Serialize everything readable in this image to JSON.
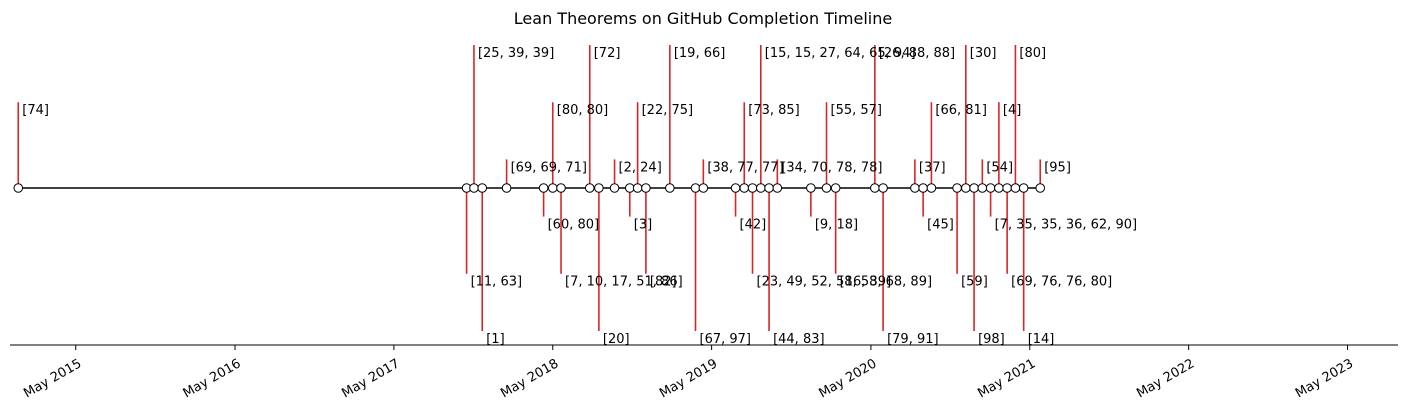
{
  "chart_data": {
    "type": "timeline",
    "title": "Lean Theorems on GitHub Completion Timeline",
    "x_axis": {
      "ticks": [
        {
          "date": "2015-05-01",
          "label": "May 2015"
        },
        {
          "date": "2016-05-01",
          "label": "May 2016"
        },
        {
          "date": "2017-05-01",
          "label": "May 2017"
        },
        {
          "date": "2018-05-01",
          "label": "May 2018"
        },
        {
          "date": "2019-05-01",
          "label": "May 2019"
        },
        {
          "date": "2020-05-01",
          "label": "May 2020"
        },
        {
          "date": "2021-05-01",
          "label": "May 2021"
        },
        {
          "date": "2022-05-01",
          "label": "May 2022"
        },
        {
          "date": "2023-05-01",
          "label": "May 2023"
        }
      ],
      "xlim": [
        "2014-12-01",
        "2023-08-25"
      ]
    },
    "grid": false,
    "stem_color": "#d62728",
    "baseline_color": "#000000",
    "events": [
      {
        "date": "2014-12-20",
        "level": 3,
        "label": "[74]"
      },
      {
        "date": "2017-10-15",
        "level": -3,
        "label": "[11, 63]"
      },
      {
        "date": "2017-11-01",
        "level": 5,
        "label": "[25, 39, 39]"
      },
      {
        "date": "2017-11-20",
        "level": -5,
        "label": "[1]"
      },
      {
        "date": "2018-01-15",
        "level": 1,
        "label": "[69, 69, 71]"
      },
      {
        "date": "2018-04-10",
        "level": -1,
        "label": "[60, 80]"
      },
      {
        "date": "2018-05-01",
        "level": 3,
        "label": "[80, 80]"
      },
      {
        "date": "2018-05-20",
        "level": -3,
        "label": "[7, 10, 17, 51, 86]"
      },
      {
        "date": "2018-07-25",
        "level": 5,
        "label": "[72]"
      },
      {
        "date": "2018-08-15",
        "level": -5,
        "label": "[20]"
      },
      {
        "date": "2018-09-20",
        "level": 1,
        "label": "[2, 24]"
      },
      {
        "date": "2018-10-25",
        "level": -1,
        "label": "[3]"
      },
      {
        "date": "2018-11-12",
        "level": 3,
        "label": "[22, 75]"
      },
      {
        "date": "2018-12-01",
        "level": -3,
        "label": "[82]"
      },
      {
        "date": "2019-01-25",
        "level": 5,
        "label": "[19, 66]"
      },
      {
        "date": "2019-03-25",
        "level": -5,
        "label": "[67, 97]"
      },
      {
        "date": "2019-04-12",
        "level": 1,
        "label": "[38, 77, 77]"
      },
      {
        "date": "2019-06-25",
        "level": -1,
        "label": "[42]"
      },
      {
        "date": "2019-07-15",
        "level": 3,
        "label": "[73, 85]"
      },
      {
        "date": "2019-08-03",
        "level": -3,
        "label": "[23, 49, 52, 58, 58, 68, 89]"
      },
      {
        "date": "2019-08-22",
        "level": 5,
        "label": "[15, 15, 27, 64, 65, 94]"
      },
      {
        "date": "2019-09-10",
        "level": -5,
        "label": "[44, 83]"
      },
      {
        "date": "2019-09-29",
        "level": 1,
        "label": "[34, 70, 78, 78]"
      },
      {
        "date": "2019-12-15",
        "level": -1,
        "label": "[9, 18]"
      },
      {
        "date": "2020-01-20",
        "level": 3,
        "label": "[55, 57]"
      },
      {
        "date": "2020-02-10",
        "level": -3,
        "label": "[16, 39]"
      },
      {
        "date": "2020-05-10",
        "level": 5,
        "label": "[26, 88, 88]"
      },
      {
        "date": "2020-05-29",
        "level": -5,
        "label": "[79, 91]"
      },
      {
        "date": "2020-08-10",
        "level": 1,
        "label": "[37]"
      },
      {
        "date": "2020-08-29",
        "level": -1,
        "label": "[45]"
      },
      {
        "date": "2020-09-17",
        "level": 3,
        "label": "[66, 81]"
      },
      {
        "date": "2020-11-15",
        "level": -3,
        "label": "[59]"
      },
      {
        "date": "2020-12-05",
        "level": 5,
        "label": "[30]"
      },
      {
        "date": "2020-12-24",
        "level": -5,
        "label": "[98]"
      },
      {
        "date": "2021-01-12",
        "level": 1,
        "label": "[54]"
      },
      {
        "date": "2021-01-31",
        "level": -1,
        "label": "[7, 35, 35, 36, 62, 90]"
      },
      {
        "date": "2021-02-19",
        "level": 3,
        "label": "[4]"
      },
      {
        "date": "2021-03-10",
        "level": -3,
        "label": "[69, 76, 76, 80]"
      },
      {
        "date": "2021-03-29",
        "level": 5,
        "label": "[80]"
      },
      {
        "date": "2021-04-17",
        "level": -5,
        "label": "[14]"
      },
      {
        "date": "2021-05-25",
        "level": 1,
        "label": "[95]"
      }
    ]
  }
}
